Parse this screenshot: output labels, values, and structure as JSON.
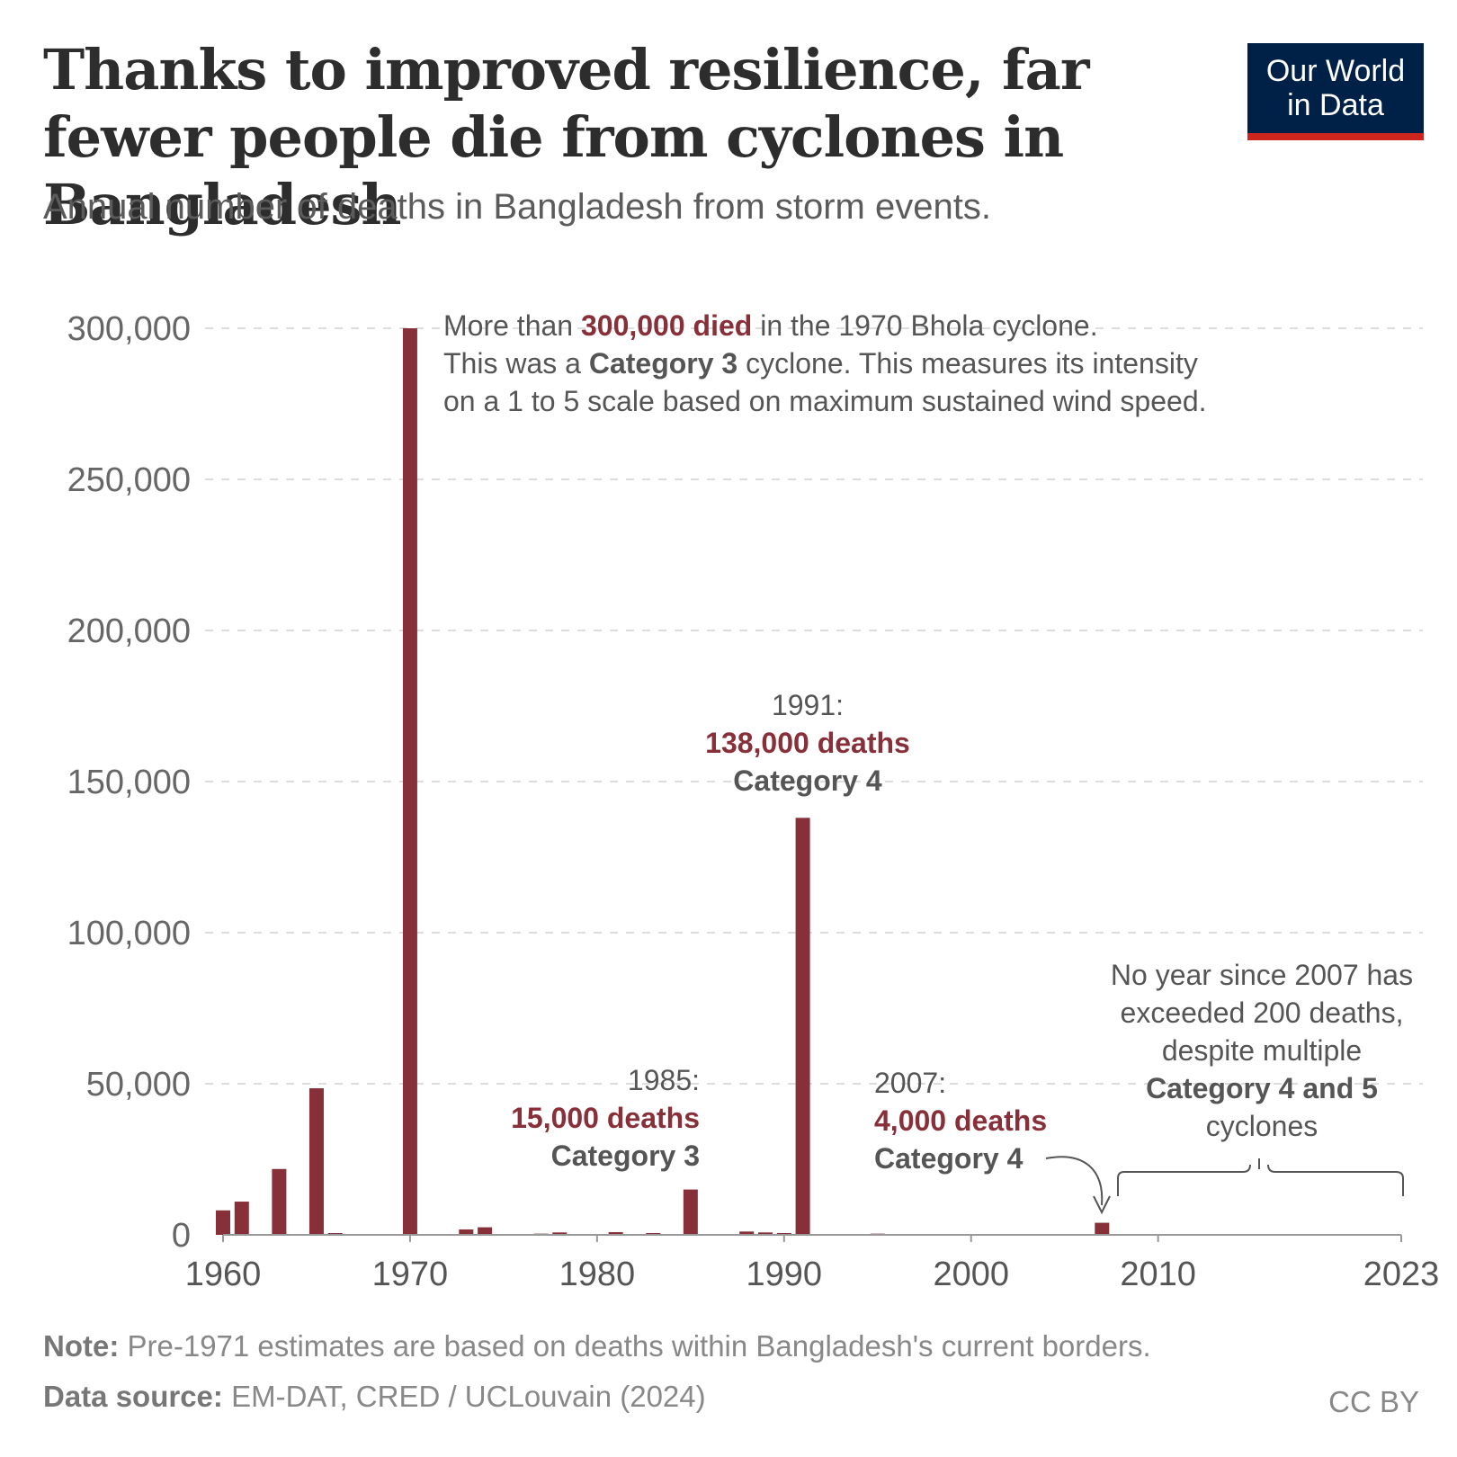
{
  "header": {
    "title": "Thanks to improved resilience, far fewer people die from cyclones in Bangladesh",
    "subtitle": "Annual number of deaths in Bangladesh from storm events."
  },
  "logo": {
    "line1": "Our World",
    "line2": "in Data"
  },
  "colors": {
    "bar": "#883039",
    "logo_bg": "#002147",
    "logo_accent": "#ce261e"
  },
  "chart_data": {
    "type": "bar",
    "title": "Annual number of deaths in Bangladesh from storm events.",
    "xlabel": "",
    "ylabel": "",
    "x_range": [
      1960,
      2023
    ],
    "ylim": [
      0,
      300000
    ],
    "yticks": [
      0,
      50000,
      100000,
      150000,
      200000,
      250000,
      300000
    ],
    "ytick_labels": [
      "0",
      "50,000",
      "100,000",
      "150,000",
      "200,000",
      "250,000",
      "300,000"
    ],
    "xticks": [
      1960,
      1970,
      1980,
      1990,
      2000,
      2010,
      2023
    ],
    "xtick_labels": [
      "1960",
      "1970",
      "1980",
      "1990",
      "2000",
      "2010",
      "2023"
    ],
    "grid": true,
    "x": [
      1960,
      1961,
      1963,
      1965,
      1966,
      1969,
      1970,
      1973,
      1974,
      1977,
      1978,
      1981,
      1983,
      1985,
      1988,
      1989,
      1990,
      1991,
      1995,
      1997,
      2007
    ],
    "values": [
      8100,
      11000,
      21800,
      48500,
      600,
      300,
      300000,
      1800,
      2500,
      400,
      800,
      900,
      600,
      15000,
      1100,
      800,
      600,
      138000,
      400,
      300,
      4000
    ],
    "annotations": {
      "bhola_l1_a": "More than ",
      "bhola_l1_b": "300,000 died",
      "bhola_l1_c": " in the 1970 Bhola cyclone.",
      "bhola_l2_a": "This was a ",
      "bhola_l2_b": "Category 3",
      "bhola_l2_c": " cyclone. This measures its intensity",
      "bhola_l3": "on a 1 to 5 scale based on maximum sustained wind speed.",
      "y1991_year": "1991:",
      "y1991_deaths": "138,000 deaths",
      "y1991_cat": "Category 4",
      "y1985_year": "1985:",
      "y1985_deaths": "15,000 deaths",
      "y1985_cat": "Category 3",
      "y2007_year": "2007:",
      "y2007_deaths": "4,000 deaths",
      "y2007_cat": "Category 4",
      "since_l1": "No year since 2007 has",
      "since_l2": "exceeded 200 deaths,",
      "since_l3": "despite multiple",
      "since_l4": "Category 4 and 5",
      "since_l5": "cyclones"
    }
  },
  "footer": {
    "note_label": "Note:",
    "note_text": " Pre-1971 estimates are based on deaths within Bangladesh's current borders.",
    "source_label": "Data source:",
    "source_text": " EM-DAT, CRED / UCLouvain (2024)",
    "license": "CC BY"
  }
}
